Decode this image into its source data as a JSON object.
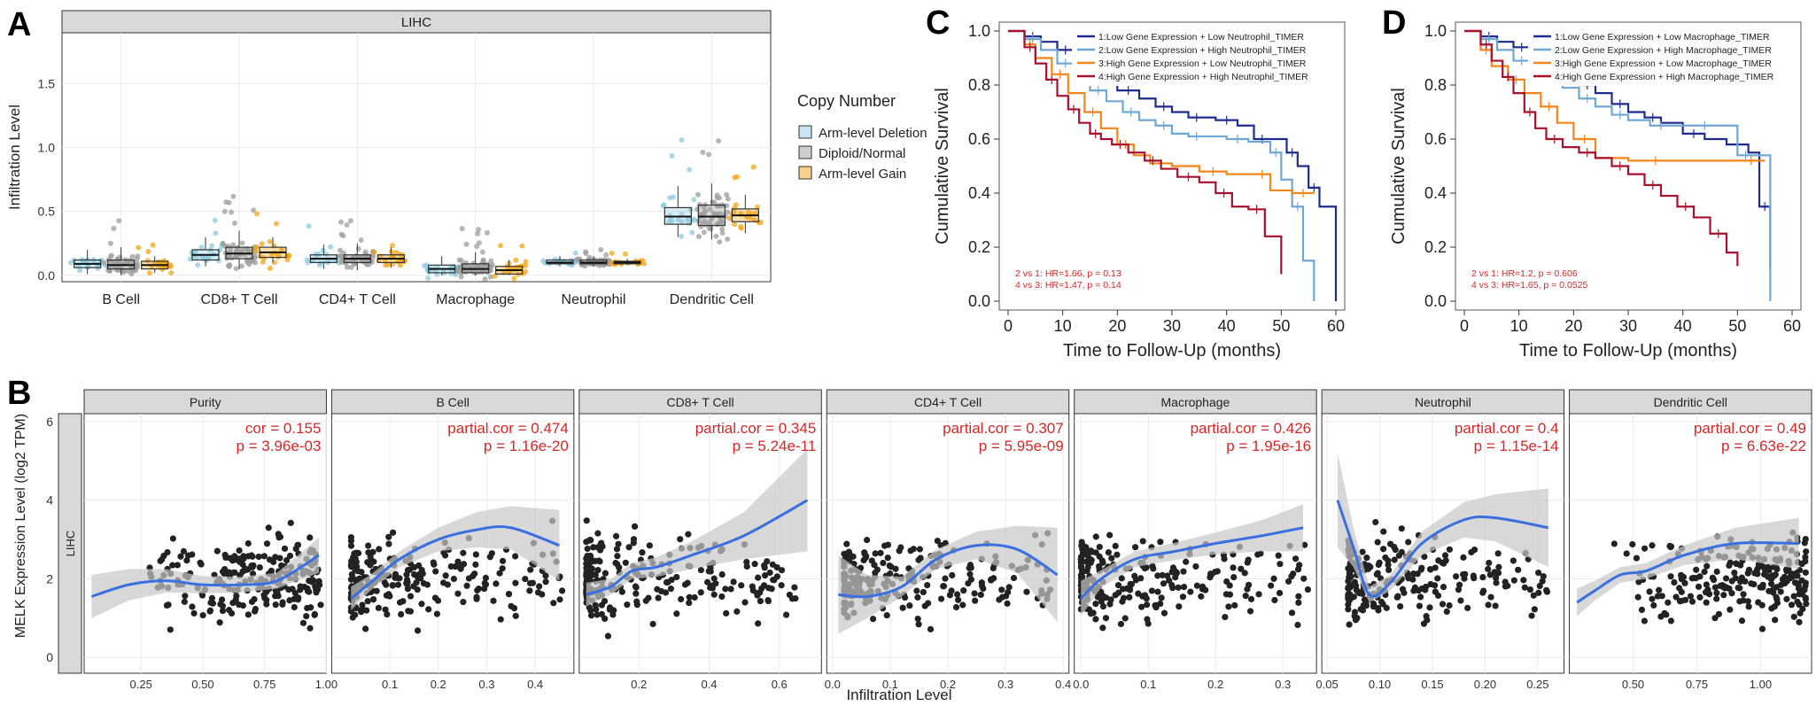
{
  "panel_letters": {
    "a": "A",
    "b": "B",
    "c": "C",
    "d": "D"
  },
  "colors": {
    "deletion": "#8fcbe0",
    "diploid": "#9e9e9e",
    "gain": "#f2a51a",
    "strip": "#d9d9d9",
    "grid": "#ebebeb",
    "km1": "#1e2c8f",
    "km2": "#6fa8d4",
    "km3": "#f58518",
    "km4": "#a8102e",
    "fit": "#3a6fe0",
    "band": "#c7c7c7",
    "stat": "#d62728",
    "point": "#222222"
  },
  "chart_data": [
    {
      "id": "A",
      "type": "box",
      "strip_title": "LIHC",
      "ylabel": "Infiltration Level",
      "ylim": [
        -0.05,
        1.9
      ],
      "yticks": [
        0.0,
        0.5,
        1.0,
        1.5
      ],
      "ytick_labels": [
        "0.0",
        "0.5",
        "1.0",
        "1.5"
      ],
      "categories": [
        "B Cell",
        "CD8+ T Cell",
        "CD4+ T Cell",
        "Macrophage",
        "Neutrophil",
        "Dendritic Cell"
      ],
      "legend": {
        "title": "Copy Number",
        "placement": "right",
        "items": [
          "Arm-level Deletion",
          "Diploid/Normal",
          "Arm-level Gain"
        ]
      },
      "series": [
        {
          "name": "Arm-level Deletion",
          "boxes": [
            {
              "q1": 0.06,
              "med": 0.09,
              "q3": 0.12,
              "lo": 0.01,
              "hi": 0.2
            },
            {
              "q1": 0.12,
              "med": 0.16,
              "q3": 0.2,
              "lo": 0.07,
              "hi": 0.3
            },
            {
              "q1": 0.1,
              "med": 0.13,
              "q3": 0.16,
              "lo": 0.05,
              "hi": 0.24
            },
            {
              "q1": 0.02,
              "med": 0.05,
              "q3": 0.08,
              "lo": 0.0,
              "hi": 0.15
            },
            {
              "q1": 0.09,
              "med": 0.1,
              "q3": 0.12,
              "lo": 0.07,
              "hi": 0.15
            },
            {
              "q1": 0.4,
              "med": 0.46,
              "q3": 0.53,
              "lo": 0.3,
              "hi": 0.7
            }
          ]
        },
        {
          "name": "Diploid/Normal",
          "boxes": [
            {
              "q1": 0.05,
              "med": 0.08,
              "q3": 0.12,
              "lo": 0.0,
              "hi": 0.22
            },
            {
              "q1": 0.13,
              "med": 0.17,
              "q3": 0.22,
              "lo": 0.05,
              "hi": 0.35
            },
            {
              "q1": 0.1,
              "med": 0.13,
              "q3": 0.16,
              "lo": 0.04,
              "hi": 0.25
            },
            {
              "q1": 0.02,
              "med": 0.05,
              "q3": 0.09,
              "lo": 0.0,
              "hi": 0.18
            },
            {
              "q1": 0.09,
              "med": 0.1,
              "q3": 0.12,
              "lo": 0.07,
              "hi": 0.15
            },
            {
              "q1": 0.39,
              "med": 0.46,
              "q3": 0.55,
              "lo": 0.28,
              "hi": 0.72
            }
          ]
        },
        {
          "name": "Arm-level Gain",
          "boxes": [
            {
              "q1": 0.05,
              "med": 0.08,
              "q3": 0.11,
              "lo": 0.02,
              "hi": 0.15
            },
            {
              "q1": 0.14,
              "med": 0.18,
              "q3": 0.22,
              "lo": 0.1,
              "hi": 0.3
            },
            {
              "q1": 0.1,
              "med": 0.13,
              "q3": 0.16,
              "lo": 0.06,
              "hi": 0.22
            },
            {
              "q1": 0.01,
              "med": 0.04,
              "q3": 0.07,
              "lo": 0.0,
              "hi": 0.12
            },
            {
              "q1": 0.09,
              "med": 0.1,
              "q3": 0.11,
              "lo": 0.08,
              "hi": 0.13
            },
            {
              "q1": 0.42,
              "med": 0.47,
              "q3": 0.52,
              "lo": 0.33,
              "hi": 0.63
            }
          ]
        }
      ]
    },
    {
      "id": "C",
      "type": "line",
      "xlabel": "Time to Follow-Up (months)",
      "ylabel": "Cumulative Survival",
      "xlim": [
        0,
        60
      ],
      "ylim": [
        0,
        1.0
      ],
      "xticks": [
        0,
        10,
        20,
        30,
        40,
        50,
        60
      ],
      "yticks": [
        0.0,
        0.2,
        0.4,
        0.6,
        0.8,
        1.0
      ],
      "ytick_labels": [
        "0.0",
        "0.2",
        "0.4",
        "0.6",
        "0.8",
        "1.0"
      ],
      "legend_placement": "top-right",
      "annotation": [
        "2 vs 1: HR=1.66, p = 0.13",
        "4 vs 3: HR=1.47, p = 0.14"
      ],
      "series": [
        {
          "name": "1:Low Gene Expression + Low Neutrophil_TIMER",
          "color_key": "km1",
          "x": [
            0,
            3,
            6,
            9,
            12,
            15,
            18,
            20,
            24,
            27,
            30,
            33,
            36,
            38,
            42,
            45,
            48,
            51,
            53,
            55,
            57,
            60
          ],
          "y": [
            1.0,
            0.98,
            0.96,
            0.93,
            0.9,
            0.86,
            0.82,
            0.78,
            0.75,
            0.72,
            0.7,
            0.68,
            0.68,
            0.67,
            0.65,
            0.6,
            0.6,
            0.55,
            0.5,
            0.42,
            0.35,
            0.0
          ]
        },
        {
          "name": "2:Low Gene Expression + High Neutrophil_TIMER",
          "color_key": "km2",
          "x": [
            0,
            3,
            6,
            9,
            12,
            15,
            18,
            21,
            24,
            27,
            30,
            33,
            36,
            40,
            44,
            48,
            50,
            52,
            54,
            56
          ],
          "y": [
            1.0,
            0.97,
            0.93,
            0.88,
            0.83,
            0.78,
            0.74,
            0.7,
            0.67,
            0.65,
            0.62,
            0.61,
            0.61,
            0.6,
            0.59,
            0.55,
            0.45,
            0.35,
            0.15,
            0.0
          ]
        },
        {
          "name": "3:High Gene Expression + Low Neutrophil_TIMER",
          "color_key": "km3",
          "x": [
            0,
            3,
            5,
            8,
            11,
            14,
            17,
            20,
            23,
            26,
            30,
            35,
            40,
            45,
            48,
            52,
            56
          ],
          "y": [
            1.0,
            0.95,
            0.9,
            0.84,
            0.77,
            0.7,
            0.64,
            0.58,
            0.54,
            0.51,
            0.5,
            0.48,
            0.47,
            0.47,
            0.41,
            0.4,
            0.4
          ]
        },
        {
          "name": "4:High Gene Expression + High Neutrophil_TIMER",
          "color_key": "km4",
          "x": [
            0,
            3,
            5,
            7,
            9,
            11,
            13,
            15,
            17,
            19,
            22,
            25,
            28,
            31,
            35,
            38,
            41,
            44,
            47,
            50
          ],
          "y": [
            1.0,
            0.94,
            0.88,
            0.82,
            0.76,
            0.71,
            0.66,
            0.62,
            0.6,
            0.58,
            0.55,
            0.52,
            0.49,
            0.46,
            0.44,
            0.4,
            0.35,
            0.34,
            0.24,
            0.1
          ]
        }
      ]
    },
    {
      "id": "D",
      "type": "line",
      "xlabel": "Time to Follow-Up (months)",
      "ylabel": "Cumulative Survival",
      "xlim": [
        0,
        60
      ],
      "ylim": [
        0,
        1.0
      ],
      "xticks": [
        0,
        10,
        20,
        30,
        40,
        50,
        60
      ],
      "yticks": [
        0.0,
        0.2,
        0.4,
        0.6,
        0.8,
        1.0
      ],
      "ytick_labels": [
        "0.0",
        "0.2",
        "0.4",
        "0.6",
        "0.8",
        "1.0"
      ],
      "legend_placement": "top-right",
      "annotation": [
        "2 vs 1: HR=1.2, p = 0.606",
        "4 vs 3: HR=1.65, p = 0.0525"
      ],
      "series": [
        {
          "name": "1:Low Gene Expression + Low Macrophage_TIMER",
          "color_key": "km1",
          "x": [
            0,
            3,
            6,
            9,
            12,
            15,
            18,
            21,
            24,
            27,
            30,
            33,
            36,
            40,
            44,
            48,
            52,
            54,
            56
          ],
          "y": [
            1.0,
            0.98,
            0.96,
            0.94,
            0.91,
            0.87,
            0.83,
            0.8,
            0.77,
            0.73,
            0.7,
            0.68,
            0.66,
            0.62,
            0.6,
            0.58,
            0.55,
            0.35,
            0.12
          ]
        },
        {
          "name": "2:Low Gene Expression + High Macrophage_TIMER",
          "color_key": "km2",
          "x": [
            0,
            3,
            6,
            9,
            12,
            15,
            18,
            21,
            24,
            27,
            30,
            34,
            38,
            42,
            46,
            50,
            53,
            56
          ],
          "y": [
            1.0,
            0.97,
            0.93,
            0.89,
            0.85,
            0.82,
            0.79,
            0.75,
            0.72,
            0.69,
            0.67,
            0.65,
            0.65,
            0.65,
            0.65,
            0.54,
            0.54,
            0.0
          ]
        },
        {
          "name": "3:High Gene Expression + Low Macrophage_TIMER",
          "color_key": "km3",
          "x": [
            0,
            3,
            5,
            8,
            11,
            14,
            17,
            20,
            24,
            30,
            40,
            50,
            55
          ],
          "y": [
            1.0,
            0.93,
            0.87,
            0.82,
            0.77,
            0.72,
            0.66,
            0.6,
            0.53,
            0.52,
            0.52,
            0.52,
            0.52
          ]
        },
        {
          "name": "4:High Gene Expression + High Macrophage_TIMER",
          "color_key": "km4",
          "x": [
            0,
            3,
            5,
            7,
            9,
            11,
            13,
            15,
            18,
            21,
            24,
            27,
            30,
            33,
            36,
            39,
            42,
            45,
            48,
            50
          ],
          "y": [
            1.0,
            0.95,
            0.89,
            0.83,
            0.77,
            0.7,
            0.64,
            0.6,
            0.57,
            0.55,
            0.53,
            0.5,
            0.47,
            0.43,
            0.39,
            0.35,
            0.31,
            0.25,
            0.18,
            0.13
          ]
        }
      ]
    },
    {
      "id": "B",
      "type": "scatter",
      "ylabel": "MELK Expression Level (log2 TPM)",
      "xlabel": "Infiltration Level",
      "row_strip": "LIHC",
      "ylim": [
        -0.4,
        6.2
      ],
      "yticks": [
        0,
        2,
        4,
        6
      ],
      "ytick_labels": [
        "0",
        "2",
        "4",
        "6"
      ],
      "grid": true,
      "facets": [
        {
          "title": "Purity",
          "stat1": "cor = 0.155",
          "stat2": "p = 3.96e-03",
          "xlim": [
            0.02,
            1.0
          ],
          "xticks": [
            0.25,
            0.5,
            0.75,
            1.0
          ],
          "xtick_labels": [
            "0.25",
            "0.50",
            "0.75",
            "1.00"
          ],
          "fit_x": [
            0.05,
            0.2,
            0.35,
            0.5,
            0.65,
            0.8,
            0.97
          ],
          "fit_y": [
            1.55,
            1.85,
            1.95,
            1.85,
            1.85,
            1.95,
            2.6
          ],
          "band_w": [
            0.55,
            0.4,
            0.3,
            0.22,
            0.2,
            0.2,
            0.45
          ],
          "point_x_range": [
            0.08,
            0.98
          ],
          "point_skew": 0.75
        },
        {
          "title": "B Cell",
          "stat1": "partial.cor = 0.474",
          "stat2": "p = 1.16e-20",
          "xlim": [
            -0.02,
            0.48
          ],
          "xticks": [
            0.1,
            0.2,
            0.3,
            0.4
          ],
          "xtick_labels": [
            "0.1",
            "0.2",
            "0.3",
            "0.4"
          ],
          "fit_x": [
            0.02,
            0.06,
            0.12,
            0.2,
            0.28,
            0.35,
            0.45
          ],
          "fit_y": [
            1.5,
            1.9,
            2.5,
            3.0,
            3.25,
            3.3,
            2.85
          ],
          "band_w": [
            0.3,
            0.2,
            0.2,
            0.3,
            0.45,
            0.55,
            0.9
          ],
          "point_x_range": [
            0.02,
            0.46
          ],
          "point_skew": 0.12
        },
        {
          "title": "CD8+ T Cell",
          "stat1": "partial.cor = 0.345",
          "stat2": "p = 5.24e-11",
          "xlim": [
            0.03,
            0.72
          ],
          "xticks": [
            0.2,
            0.4,
            0.6
          ],
          "xtick_labels": [
            "0.2",
            "0.4",
            "0.6"
          ],
          "fit_x": [
            0.05,
            0.12,
            0.18,
            0.25,
            0.35,
            0.5,
            0.68
          ],
          "fit_y": [
            1.6,
            1.8,
            2.2,
            2.3,
            2.6,
            3.1,
            4.0
          ],
          "band_w": [
            0.3,
            0.2,
            0.2,
            0.25,
            0.35,
            0.6,
            1.3
          ],
          "point_x_range": [
            0.05,
            0.65
          ],
          "point_skew": 0.2
        },
        {
          "title": "CD4+ T Cell",
          "stat1": "partial.cor = 0.307",
          "stat2": "p = 5.95e-09",
          "xlim": [
            -0.01,
            0.41
          ],
          "xticks": [
            0.0,
            0.1,
            0.2,
            0.3,
            0.4
          ],
          "xtick_labels": [
            "0.0",
            "0.1",
            "0.2",
            "0.3",
            "0.4"
          ],
          "fit_x": [
            0.01,
            0.06,
            0.12,
            0.18,
            0.25,
            0.32,
            0.39
          ],
          "fit_y": [
            1.6,
            1.55,
            1.8,
            2.5,
            2.85,
            2.75,
            2.1
          ],
          "band_w": [
            1.0,
            0.55,
            0.25,
            0.25,
            0.35,
            0.6,
            1.2
          ],
          "point_x_range": [
            0.02,
            0.38
          ],
          "point_skew": 0.14
        },
        {
          "title": "Macrophage",
          "stat1": "partial.cor = 0.426",
          "stat2": "p = 1.95e-16",
          "xlim": [
            -0.01,
            0.35
          ],
          "xticks": [
            0.0,
            0.1,
            0.2,
            0.3
          ],
          "xtick_labels": [
            "0.0",
            "0.1",
            "0.2",
            "0.3"
          ],
          "fit_x": [
            0.0,
            0.03,
            0.08,
            0.14,
            0.2,
            0.27,
            0.33
          ],
          "fit_y": [
            1.5,
            2.0,
            2.5,
            2.7,
            2.9,
            3.1,
            3.3
          ],
          "band_w": [
            0.45,
            0.22,
            0.2,
            0.22,
            0.28,
            0.4,
            0.6
          ],
          "point_x_range": [
            0.0,
            0.34
          ],
          "point_skew": 0.1
        },
        {
          "title": "Neutrophil",
          "stat1": "partial.cor = 0.4",
          "stat2": "p = 1.15e-14",
          "xlim": [
            0.045,
            0.275
          ],
          "xticks": [
            0.05,
            0.1,
            0.15,
            0.2,
            0.25
          ],
          "xtick_labels": [
            "0.05",
            "0.10",
            "0.15",
            "0.20",
            "0.25"
          ],
          "fit_x": [
            0.06,
            0.075,
            0.09,
            0.11,
            0.14,
            0.18,
            0.21,
            0.26
          ],
          "fit_y": [
            4.0,
            2.8,
            1.6,
            1.9,
            2.9,
            3.5,
            3.55,
            3.3
          ],
          "band_w": [
            1.2,
            0.5,
            0.2,
            0.2,
            0.3,
            0.45,
            0.6,
            1.0
          ],
          "point_x_range": [
            0.07,
            0.26
          ],
          "point_skew": 0.11
        },
        {
          "title": "Dendritic Cell",
          "stat1": "partial.cor = 0.49",
          "stat2": "p = 6.63e-22",
          "xlim": [
            0.25,
            1.2
          ],
          "xticks": [
            0.5,
            0.75,
            1.0
          ],
          "xtick_labels": [
            "0.50",
            "0.75",
            "1.00"
          ],
          "fit_x": [
            0.28,
            0.35,
            0.45,
            0.55,
            0.7,
            0.9,
            1.15
          ],
          "fit_y": [
            1.4,
            1.7,
            2.1,
            2.2,
            2.6,
            2.9,
            2.9
          ],
          "band_w": [
            0.35,
            0.25,
            0.2,
            0.2,
            0.25,
            0.4,
            0.65
          ],
          "point_x_range": [
            0.28,
            1.18
          ],
          "point_skew": 0.5
        }
      ]
    }
  ]
}
